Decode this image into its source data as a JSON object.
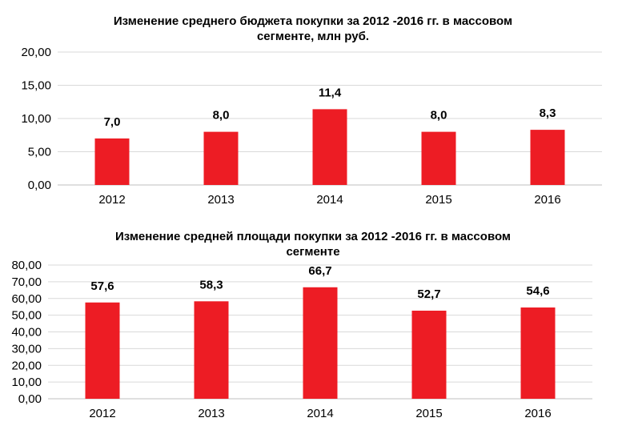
{
  "colors": {
    "bar": "#ed1c24",
    "grid": "#d9d9d9",
    "axis": "#bfbfbf",
    "text": "#000000"
  },
  "chart_data": [
    {
      "type": "bar",
      "title_lines": [
        "Изменение среднего бюджета покупки за 2012 -2016 гг. в массовом",
        "сегменте, млн руб."
      ],
      "categories": [
        "2012",
        "2013",
        "2014",
        "2015",
        "2016"
      ],
      "values": [
        7.0,
        8.0,
        11.4,
        8.0,
        8.3
      ],
      "data_labels": [
        "7,0",
        "8,0",
        "11,4",
        "8,0",
        "8,3"
      ],
      "yticks": [
        0,
        5,
        10,
        15,
        20
      ],
      "ytick_labels": [
        "0,00",
        "5,00",
        "10,00",
        "15,00",
        "20,00"
      ],
      "ylim": [
        0,
        20
      ],
      "grid": true,
      "legend": "none"
    },
    {
      "type": "bar",
      "title_lines": [
        "Изменение средней площади покупки за 2012 -2016 гг. в массовом",
        "сегменте"
      ],
      "categories": [
        "2012",
        "2013",
        "2014",
        "2015",
        "2016"
      ],
      "values": [
        57.6,
        58.3,
        66.7,
        52.7,
        54.6
      ],
      "data_labels": [
        "57,6",
        "58,3",
        "66,7",
        "52,7",
        "54,6"
      ],
      "yticks": [
        0,
        10,
        20,
        30,
        40,
        50,
        60,
        70,
        80
      ],
      "ytick_labels": [
        "0,00",
        "10,00",
        "20,00",
        "30,00",
        "40,00",
        "50,00",
        "60,00",
        "70,00",
        "80,00"
      ],
      "ylim": [
        0,
        80
      ],
      "grid": true,
      "legend": "none"
    }
  ]
}
